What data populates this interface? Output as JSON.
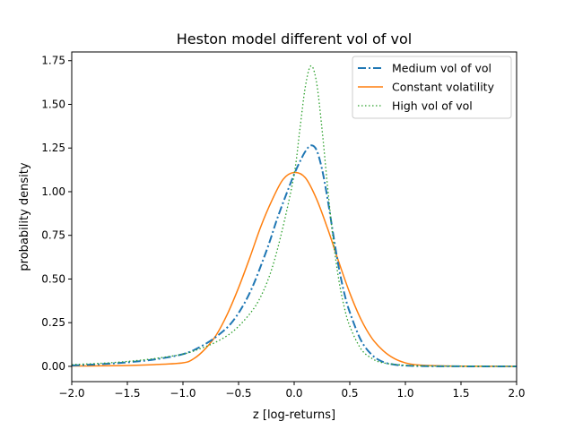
{
  "chart_data": {
    "type": "line",
    "title": "Heston model different vol of vol",
    "xlabel": "z [log-returns]",
    "ylabel": "probability density",
    "xlim": [
      -2.0,
      2.0
    ],
    "ylim": [
      -0.0875,
      1.8
    ],
    "xticks": [
      -2.0,
      -1.5,
      -1.0,
      -0.5,
      0.0,
      0.5,
      1.0,
      1.5,
      2.0
    ],
    "xtick_labels": [
      "−2.0",
      "−1.5",
      "−1.0",
      "−0.5",
      "0.0",
      "0.5",
      "1.0",
      "1.5",
      "2.0"
    ],
    "yticks": [
      0.0,
      0.25,
      0.5,
      0.75,
      1.0,
      1.25,
      1.5,
      1.75
    ],
    "ytick_labels": [
      "0.00",
      "0.25",
      "0.50",
      "0.75",
      "1.00",
      "1.25",
      "1.50",
      "1.75"
    ],
    "grid": false,
    "legend_position": "top-right",
    "series": [
      {
        "name": "Medium vol of vol",
        "color": "#1f77b4",
        "linestyle": "dashdot",
        "x": [
          -2.0,
          -1.75,
          -1.5,
          -1.25,
          -1.0,
          -0.85,
          -0.7,
          -0.55,
          -0.4,
          -0.25,
          -0.15,
          -0.05,
          0.0,
          0.05,
          0.1,
          0.15,
          0.2,
          0.25,
          0.3,
          0.35,
          0.4,
          0.45,
          0.5,
          0.6,
          0.7,
          0.8,
          0.9,
          1.0,
          1.2,
          1.5,
          2.0
        ],
        "y": [
          0.005,
          0.012,
          0.023,
          0.04,
          0.07,
          0.11,
          0.17,
          0.26,
          0.42,
          0.66,
          0.85,
          1.02,
          1.1,
          1.17,
          1.23,
          1.265,
          1.24,
          1.13,
          0.96,
          0.76,
          0.57,
          0.42,
          0.31,
          0.15,
          0.065,
          0.025,
          0.01,
          0.004,
          0.001,
          0.0,
          0.0
        ]
      },
      {
        "name": "Constant volatility",
        "color": "#ff7f0e",
        "linestyle": "solid",
        "x": [
          -2.0,
          -1.75,
          -1.5,
          -1.25,
          -1.0,
          -0.9,
          -0.8,
          -0.7,
          -0.6,
          -0.5,
          -0.4,
          -0.3,
          -0.2,
          -0.1,
          0.0,
          0.1,
          0.2,
          0.3,
          0.4,
          0.5,
          0.6,
          0.7,
          0.8,
          0.9,
          1.0,
          1.1,
          1.25,
          1.5,
          2.0
        ],
        "y": [
          0.002,
          0.003,
          0.005,
          0.01,
          0.02,
          0.045,
          0.1,
          0.18,
          0.3,
          0.45,
          0.62,
          0.8,
          0.95,
          1.07,
          1.11,
          1.08,
          0.96,
          0.79,
          0.6,
          0.42,
          0.27,
          0.16,
          0.09,
          0.045,
          0.02,
          0.009,
          0.004,
          0.001,
          0.0
        ]
      },
      {
        "name": "High vol of vol",
        "color": "#2ca02c",
        "linestyle": "dotted",
        "x": [
          -2.0,
          -1.75,
          -1.5,
          -1.25,
          -1.0,
          -0.85,
          -0.7,
          -0.55,
          -0.4,
          -0.3,
          -0.2,
          -0.1,
          0.0,
          0.05,
          0.1,
          0.15,
          0.2,
          0.25,
          0.3,
          0.35,
          0.4,
          0.45,
          0.5,
          0.6,
          0.7,
          0.8,
          1.0,
          1.2,
          1.5,
          2.0
        ],
        "y": [
          0.01,
          0.017,
          0.028,
          0.045,
          0.07,
          0.1,
          0.14,
          0.2,
          0.3,
          0.4,
          0.56,
          0.8,
          1.1,
          1.35,
          1.6,
          1.72,
          1.63,
          1.36,
          1.03,
          0.73,
          0.5,
          0.34,
          0.23,
          0.1,
          0.045,
          0.02,
          0.006,
          0.002,
          0.001,
          0.0
        ]
      }
    ]
  }
}
